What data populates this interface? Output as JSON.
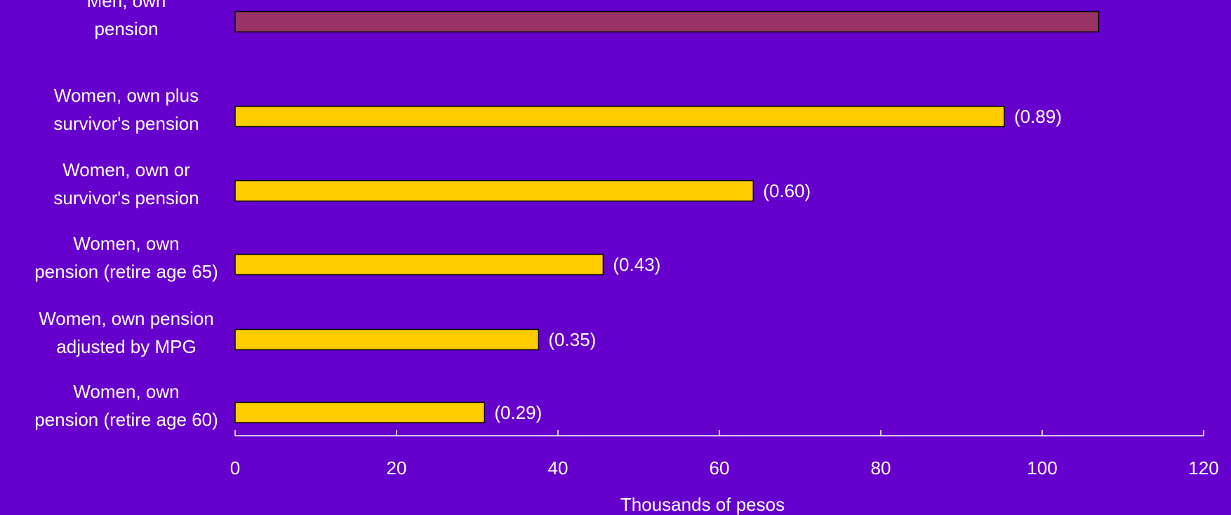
{
  "chart_data": {
    "type": "bar",
    "orientation": "horizontal",
    "xlabel": "Thousands of pesos",
    "xlim": [
      0,
      120
    ],
    "xticks": [
      0,
      20,
      40,
      60,
      80,
      100,
      120
    ],
    "grid": false,
    "categories": [
      [
        "Men, own",
        "pension"
      ],
      [
        "Women, own plus",
        "survivor's pension"
      ],
      [
        "Women, own or",
        "survivor's pension"
      ],
      [
        "Women, own",
        "pension (retire age 65)"
      ],
      [
        "Women, own pension",
        "adjusted by MPG"
      ],
      [
        "Women, own",
        "pension (retire age 60)"
      ]
    ],
    "values": [
      107,
      95.3,
      64.2,
      45.6,
      37.6,
      30.9
    ],
    "data_labels": [
      "",
      "(0.89)",
      "(0.60)",
      "(0.43)",
      "(0.35)",
      "(0.29)"
    ],
    "colors": [
      "#993366",
      "#FFCC00",
      "#FFCC00",
      "#FFCC00",
      "#FFCC00",
      "#FFCC00"
    ]
  },
  "colors": {
    "background": "#6600CC",
    "text": "#FFFFFF",
    "bar_outline": "#000000"
  }
}
